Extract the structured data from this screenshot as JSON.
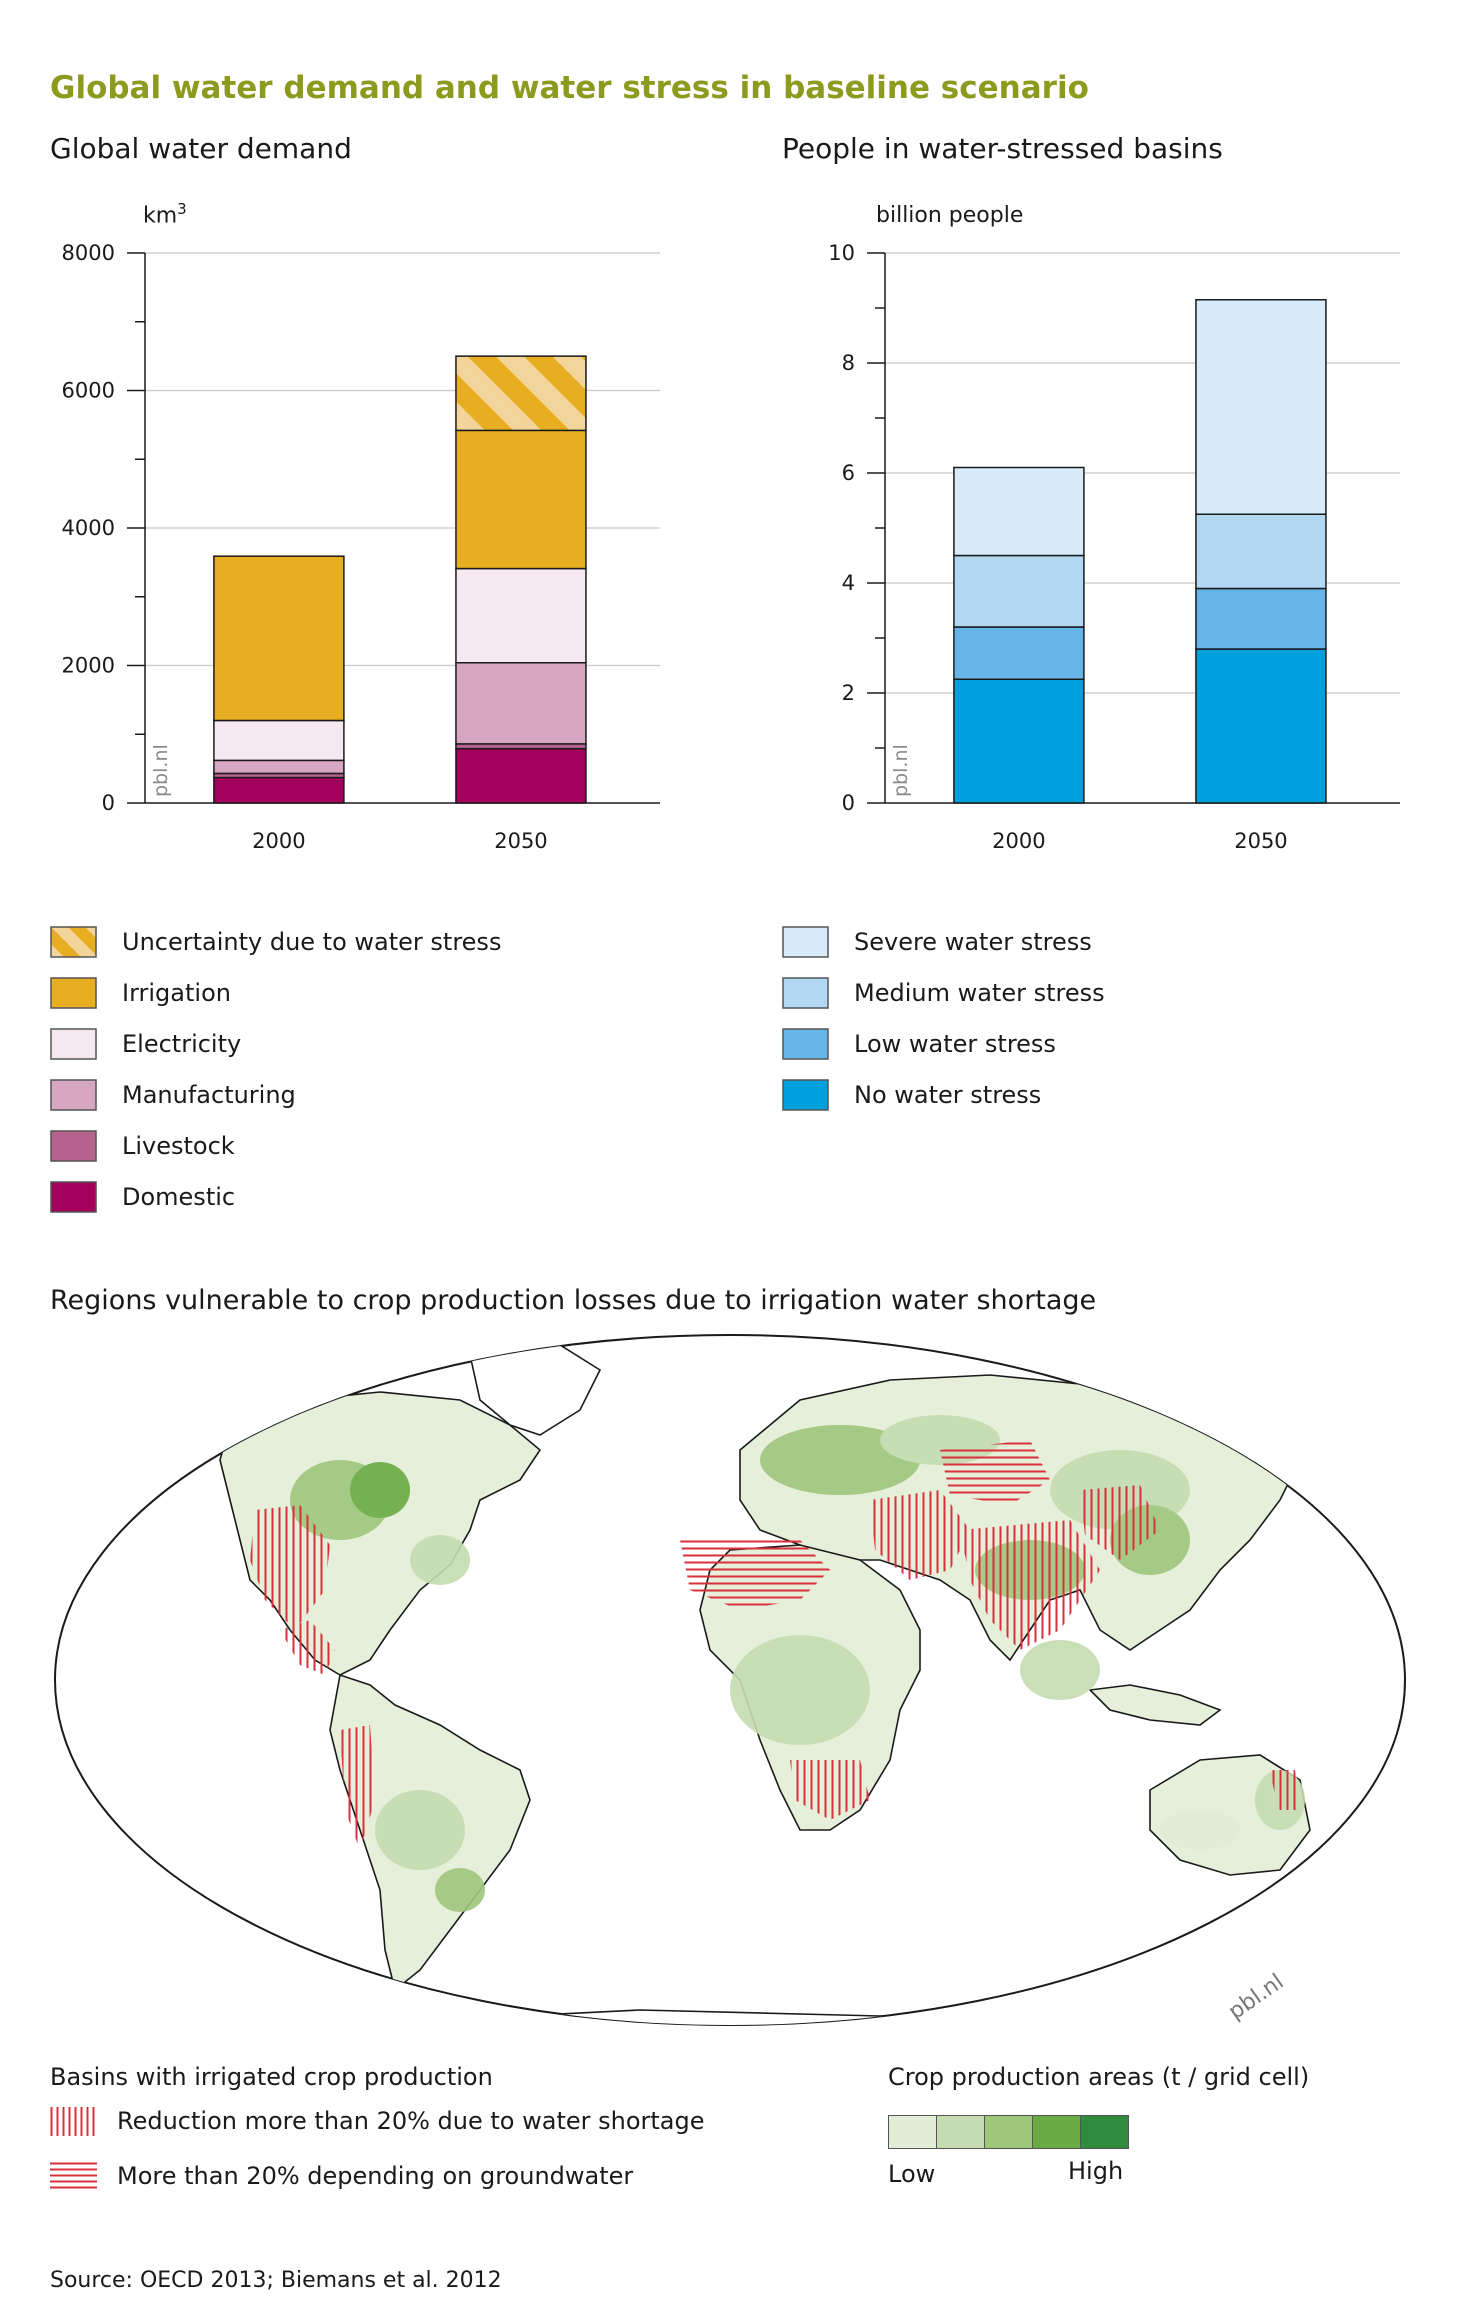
{
  "title": "Global water demand and water stress in baseline scenario",
  "colors": {
    "title": "#8c9a1e",
    "irrigation": "#e6ae20",
    "uncertainty_stripe": "#f3d49a",
    "electricity": "#f5e8ef",
    "manufacturing": "#d6a6c2",
    "livestock": "#b5628f",
    "domestic": "#a3005e",
    "severe": "#d7ebfa",
    "medium": "#b2d7f3",
    "low": "#66b5e8",
    "none": "#00a0dd",
    "hatch_red": "#d9303c",
    "green_scale": [
      "#e2ecd6",
      "#c4dcaf",
      "#9fc77c",
      "#6aab43",
      "#2f8b3d"
    ]
  },
  "charts": [
    {
      "title": "Global water demand",
      "unit": "km",
      "unit_sup": "3",
      "watermark": "pbl.nl",
      "chart_data": {
        "type": "bar",
        "stacked": true,
        "categories": [
          "2000",
          "2050"
        ],
        "ylim": [
          0,
          8000
        ],
        "yticks": [
          0,
          2000,
          4000,
          6000,
          8000
        ],
        "grid": true,
        "series": [
          {
            "key": "domestic",
            "name": "Domestic",
            "values": [
              370,
              790
            ]
          },
          {
            "key": "livestock",
            "name": "Livestock",
            "values": [
              60,
              70
            ]
          },
          {
            "key": "manufacturing",
            "name": "Manufacturing",
            "values": [
              190,
              1180
            ]
          },
          {
            "key": "electricity",
            "name": "Electricity",
            "values": [
              580,
              1370
            ]
          },
          {
            "key": "irrigation",
            "name": "Irrigation",
            "values": [
              2390,
              2010
            ]
          },
          {
            "key": "uncertainty",
            "name": "Uncertainty due to water stress",
            "values": [
              0,
              1080
            ]
          }
        ]
      },
      "legend": [
        {
          "key": "uncertainty",
          "label": "Uncertainty due to water stress"
        },
        {
          "key": "irrigation",
          "label": "Irrigation"
        },
        {
          "key": "electricity",
          "label": "Electricity"
        },
        {
          "key": "manufacturing",
          "label": "Manufacturing"
        },
        {
          "key": "livestock",
          "label": "Livestock"
        },
        {
          "key": "domestic",
          "label": "Domestic"
        }
      ]
    },
    {
      "title": "People in water-stressed basins",
      "unit": "billion people",
      "watermark": "pbl.nl",
      "chart_data": {
        "type": "bar",
        "stacked": true,
        "categories": [
          "2000",
          "2050"
        ],
        "ylim": [
          0,
          10
        ],
        "yticks": [
          0,
          2,
          4,
          6,
          8,
          10
        ],
        "grid": true,
        "series": [
          {
            "key": "none",
            "name": "No water stress",
            "values": [
              2.25,
              2.8
            ]
          },
          {
            "key": "low",
            "name": "Low water stress",
            "values": [
              0.95,
              1.1
            ]
          },
          {
            "key": "medium",
            "name": "Medium water stress",
            "values": [
              1.3,
              1.35
            ]
          },
          {
            "key": "severe",
            "name": "Severe water stress",
            "values": [
              1.6,
              3.9
            ]
          }
        ]
      },
      "legend": [
        {
          "key": "severe",
          "label": "Severe water stress"
        },
        {
          "key": "medium",
          "label": "Medium water stress"
        },
        {
          "key": "low",
          "label": "Low water stress"
        },
        {
          "key": "none",
          "label": "No water stress"
        }
      ]
    }
  ],
  "map": {
    "title": "Regions vulnerable to crop production losses due to irrigation water shortage",
    "watermark": "pbl.nl",
    "basins_title": "Basins with irrigated crop production",
    "basins": [
      {
        "pattern": "vertical",
        "label": "Reduction more than 20% due to water shortage"
      },
      {
        "pattern": "horizontal",
        "label": "More than 20% depending on groundwater"
      }
    ],
    "crop_title": "Crop production areas (t / grid cell)",
    "crop_low": "Low",
    "crop_high": "High"
  },
  "source": "Source: OECD 2013; Biemans et al. 2012"
}
